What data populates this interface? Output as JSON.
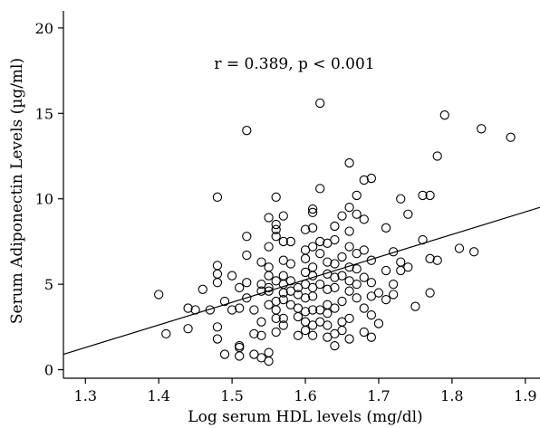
{
  "chart_data": {
    "type": "scatter",
    "title": "",
    "xlabel": "Log serum HDL levels (mg/dl)",
    "ylabel": "Serum Adiponectin Levels (µg/ml)",
    "annotation": "r = 0.389, p < 0.001",
    "xlim": [
      1.27,
      1.92
    ],
    "ylim": [
      -0.5,
      21
    ],
    "xticks": [
      1.3,
      1.4,
      1.5,
      1.6,
      1.7,
      1.8,
      1.9
    ],
    "xtick_labels": [
      "1.3",
      "1.4",
      "1.5",
      "1.6",
      "1.7",
      "1.8",
      "1.9"
    ],
    "yticks": [
      0,
      5,
      10,
      15,
      20
    ],
    "ytick_labels": [
      "0",
      "5",
      "10",
      "15",
      "20"
    ],
    "grid": false,
    "fit_line": {
      "x": [
        1.27,
        1.92
      ],
      "y": [
        0.9,
        9.5
      ]
    },
    "marker_color": "#000000",
    "points": [
      [
        1.4,
        4.4
      ],
      [
        1.41,
        2.1
      ],
      [
        1.44,
        3.6
      ],
      [
        1.44,
        2.4
      ],
      [
        1.45,
        3.5
      ],
      [
        1.46,
        4.7
      ],
      [
        1.47,
        3.5
      ],
      [
        1.48,
        10.1
      ],
      [
        1.48,
        6.1
      ],
      [
        1.48,
        5.6
      ],
      [
        1.48,
        5.1
      ],
      [
        1.48,
        2.5
      ],
      [
        1.48,
        1.8
      ],
      [
        1.49,
        4.0
      ],
      [
        1.49,
        0.9
      ],
      [
        1.5,
        5.5
      ],
      [
        1.5,
        3.5
      ],
      [
        1.51,
        4.8
      ],
      [
        1.51,
        3.6
      ],
      [
        1.51,
        1.4
      ],
      [
        1.51,
        1.3
      ],
      [
        1.51,
        0.8
      ],
      [
        1.52,
        14.0
      ],
      [
        1.52,
        7.8
      ],
      [
        1.52,
        6.7
      ],
      [
        1.52,
        5.1
      ],
      [
        1.52,
        4.2
      ],
      [
        1.53,
        3.5
      ],
      [
        1.53,
        2.1
      ],
      [
        1.53,
        0.9
      ],
      [
        1.54,
        6.3
      ],
      [
        1.54,
        5.0
      ],
      [
        1.54,
        4.6
      ],
      [
        1.54,
        2.8
      ],
      [
        1.54,
        2.0
      ],
      [
        1.54,
        0.7
      ],
      [
        1.55,
        8.9
      ],
      [
        1.55,
        7.2
      ],
      [
        1.55,
        6.0
      ],
      [
        1.55,
        5.5
      ],
      [
        1.55,
        4.8
      ],
      [
        1.55,
        4.6
      ],
      [
        1.55,
        3.8
      ],
      [
        1.55,
        1.0
      ],
      [
        1.55,
        0.5
      ],
      [
        1.56,
        10.1
      ],
      [
        1.56,
        8.5
      ],
      [
        1.56,
        8.2
      ],
      [
        1.56,
        7.8
      ],
      [
        1.56,
        5.2
      ],
      [
        1.56,
        4.0
      ],
      [
        1.56,
        3.5
      ],
      [
        1.56,
        3.0
      ],
      [
        1.56,
        2.2
      ],
      [
        1.57,
        9.0
      ],
      [
        1.57,
        7.5
      ],
      [
        1.57,
        6.4
      ],
      [
        1.57,
        5.5
      ],
      [
        1.57,
        5.0
      ],
      [
        1.57,
        4.5
      ],
      [
        1.57,
        4.1
      ],
      [
        1.57,
        3.0
      ],
      [
        1.57,
        2.6
      ],
      [
        1.58,
        7.5
      ],
      [
        1.58,
        6.2
      ],
      [
        1.58,
        5.2
      ],
      [
        1.58,
        4.6
      ],
      [
        1.58,
        3.8
      ],
      [
        1.59,
        4.8
      ],
      [
        1.59,
        4.4
      ],
      [
        1.59,
        3.6
      ],
      [
        1.59,
        3.1
      ],
      [
        1.59,
        2.0
      ],
      [
        1.6,
        8.2
      ],
      [
        1.6,
        7.0
      ],
      [
        1.6,
        6.5
      ],
      [
        1.6,
        5.7
      ],
      [
        1.6,
        5.0
      ],
      [
        1.6,
        4.2
      ],
      [
        1.6,
        3.4
      ],
      [
        1.6,
        2.8
      ],
      [
        1.6,
        2.3
      ],
      [
        1.61,
        9.4
      ],
      [
        1.61,
        9.2
      ],
      [
        1.61,
        8.3
      ],
      [
        1.61,
        7.2
      ],
      [
        1.61,
        6.0
      ],
      [
        1.61,
        5.5
      ],
      [
        1.61,
        4.8
      ],
      [
        1.61,
        4.3
      ],
      [
        1.61,
        3.5
      ],
      [
        1.61,
        2.6
      ],
      [
        1.61,
        2.0
      ],
      [
        1.62,
        15.6
      ],
      [
        1.62,
        10.6
      ],
      [
        1.62,
        7.5
      ],
      [
        1.62,
        6.8
      ],
      [
        1.62,
        5.0
      ],
      [
        1.62,
        3.5
      ],
      [
        1.62,
        2.8
      ],
      [
        1.63,
        7.4
      ],
      [
        1.63,
        6.3
      ],
      [
        1.63,
        5.6
      ],
      [
        1.63,
        4.7
      ],
      [
        1.63,
        3.8
      ],
      [
        1.63,
        3.3
      ],
      [
        1.63,
        2.6
      ],
      [
        1.63,
        1.9
      ],
      [
        1.64,
        8.4
      ],
      [
        1.64,
        7.6
      ],
      [
        1.64,
        6.2
      ],
      [
        1.64,
        5.4
      ],
      [
        1.64,
        4.8
      ],
      [
        1.64,
        3.6
      ],
      [
        1.64,
        2.1
      ],
      [
        1.64,
        1.4
      ],
      [
        1.65,
        9.0
      ],
      [
        1.65,
        6.6
      ],
      [
        1.65,
        5.5
      ],
      [
        1.65,
        4.0
      ],
      [
        1.65,
        2.8
      ],
      [
        1.65,
        2.3
      ],
      [
        1.66,
        12.1
      ],
      [
        1.66,
        9.5
      ],
      [
        1.66,
        8.1
      ],
      [
        1.66,
        7.2
      ],
      [
        1.66,
        6.0
      ],
      [
        1.66,
        5.2
      ],
      [
        1.66,
        4.6
      ],
      [
        1.66,
        3.0
      ],
      [
        1.66,
        1.8
      ],
      [
        1.67,
        10.2
      ],
      [
        1.67,
        9.1
      ],
      [
        1.67,
        6.8
      ],
      [
        1.67,
        5.9
      ],
      [
        1.67,
        5.0
      ],
      [
        1.67,
        4.2
      ],
      [
        1.68,
        11.1
      ],
      [
        1.68,
        8.8
      ],
      [
        1.68,
        7.0
      ],
      [
        1.68,
        5.4
      ],
      [
        1.68,
        3.6
      ],
      [
        1.68,
        2.2
      ],
      [
        1.69,
        11.2
      ],
      [
        1.69,
        6.4
      ],
      [
        1.69,
        5.1
      ],
      [
        1.69,
        4.3
      ],
      [
        1.69,
        3.2
      ],
      [
        1.69,
        1.9
      ],
      [
        1.7,
        4.5
      ],
      [
        1.7,
        2.7
      ],
      [
        1.71,
        8.3
      ],
      [
        1.71,
        5.8
      ],
      [
        1.71,
        4.1
      ],
      [
        1.72,
        6.9
      ],
      [
        1.72,
        5.0
      ],
      [
        1.72,
        4.4
      ],
      [
        1.73,
        10.0
      ],
      [
        1.73,
        6.3
      ],
      [
        1.73,
        5.8
      ],
      [
        1.74,
        9.1
      ],
      [
        1.74,
        6.0
      ],
      [
        1.75,
        3.7
      ],
      [
        1.76,
        10.2
      ],
      [
        1.76,
        7.6
      ],
      [
        1.77,
        10.2
      ],
      [
        1.77,
        6.5
      ],
      [
        1.77,
        4.5
      ],
      [
        1.78,
        12.5
      ],
      [
        1.78,
        6.4
      ],
      [
        1.79,
        14.9
      ],
      [
        1.81,
        7.1
      ],
      [
        1.83,
        6.9
      ],
      [
        1.84,
        14.1
      ],
      [
        1.88,
        13.6
      ]
    ]
  }
}
